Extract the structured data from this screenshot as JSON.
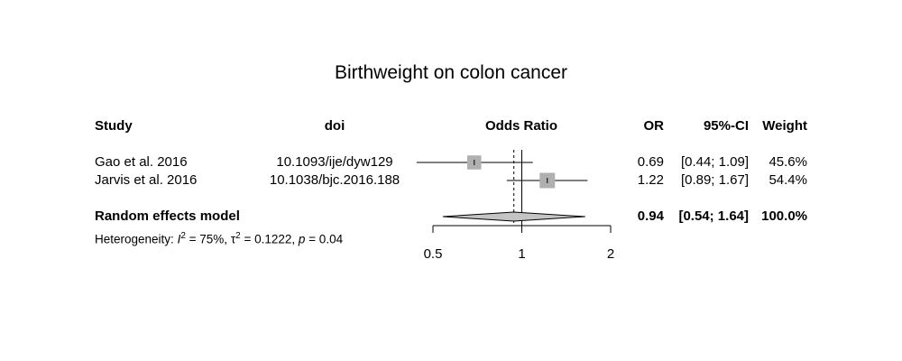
{
  "chart_data": {
    "type": "forest",
    "title": "Birthweight on colon cancer",
    "columns": {
      "study": "Study",
      "doi": "doi",
      "plot": "Odds Ratio",
      "or": "OR",
      "ci": "95%-CI",
      "weight": "Weight"
    },
    "studies": [
      {
        "name": "Gao et al. 2016",
        "doi": "10.1093/ije/dyw129",
        "or": 0.69,
        "lower": 0.44,
        "upper": 1.09,
        "or_text": "0.69",
        "ci_text": "[0.44; 1.09]",
        "weight": 45.6,
        "weight_text": "45.6%"
      },
      {
        "name": "Jarvis et al. 2016",
        "doi": "10.1038/bjc.2016.188",
        "or": 1.22,
        "lower": 0.89,
        "upper": 1.67,
        "or_text": "1.22",
        "ci_text": "[0.89; 1.67]",
        "weight": 54.4,
        "weight_text": "54.4%"
      }
    ],
    "pooled": {
      "label": "Random effects model",
      "or": 0.94,
      "lower": 0.54,
      "upper": 1.64,
      "or_text": "0.94",
      "ci_text": "[0.54; 1.64]",
      "weight_text": "100.0%"
    },
    "heterogeneity": {
      "prefix": "Heterogeneity: ",
      "i2_symbol": "I",
      "i2_value": " = 75%, ",
      "tau2_symbol": "τ",
      "tau2_value": " = 0.1222, ",
      "p_symbol": "p",
      "p_value": " = 0.04"
    },
    "x_axis": {
      "scale": "log",
      "range": [
        0.5,
        2
      ],
      "ticks": [
        0.5,
        1,
        2
      ],
      "tick_labels": [
        "0.5",
        "1",
        "2"
      ],
      "null_line": 1
    },
    "colors": {
      "square": "#b0b0b0",
      "diamond": "#c4c4c4",
      "lines": "#000000"
    }
  }
}
